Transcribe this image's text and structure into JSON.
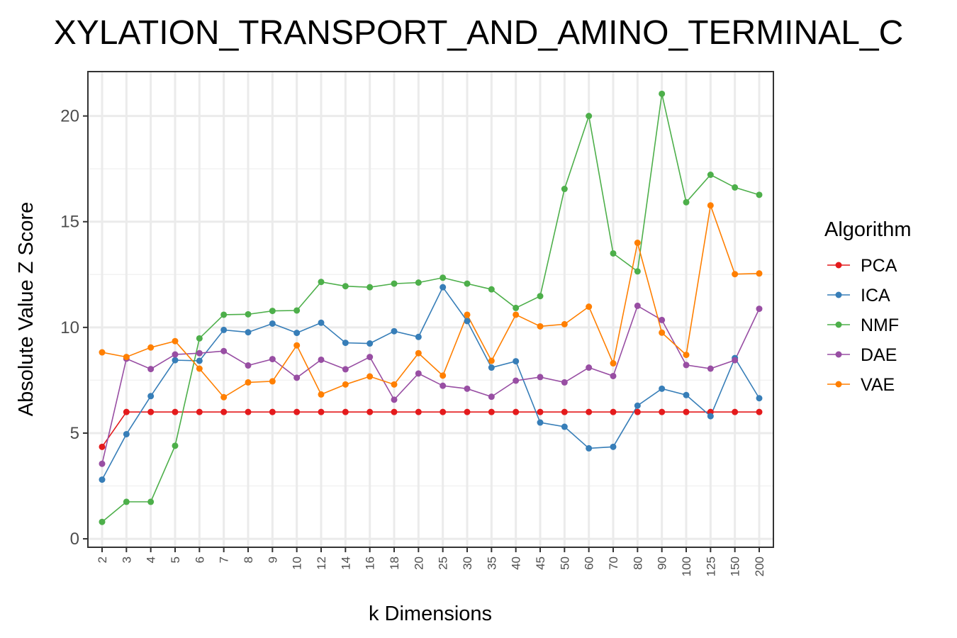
{
  "chart_data": {
    "type": "line",
    "title": "XYLATION_TRANSPORT_AND_AMINO_TERMINAL_C",
    "xlabel": "k Dimensions",
    "ylabel": "Absolute Value Z Score",
    "categories": [
      "2",
      "3",
      "4",
      "5",
      "6",
      "7",
      "8",
      "9",
      "10",
      "12",
      "14",
      "16",
      "18",
      "20",
      "25",
      "30",
      "35",
      "40",
      "45",
      "50",
      "60",
      "70",
      "80",
      "90",
      "100",
      "125",
      "150",
      "200"
    ],
    "ylim": [
      -0.4,
      22.1
    ],
    "yticks": [
      0,
      5,
      10,
      15,
      20
    ],
    "grid": true,
    "legend": {
      "title": "Algorithm",
      "position": "right"
    },
    "series": [
      {
        "name": "PCA",
        "color": "#e41a1c",
        "values": [
          4.35,
          6.0,
          6.0,
          6.0,
          6.0,
          6.0,
          6.0,
          6.0,
          6.0,
          6.0,
          6.0,
          6.0,
          6.0,
          6.0,
          6.0,
          6.0,
          6.0,
          6.0,
          6.0,
          6.0,
          6.0,
          6.0,
          6.0,
          6.0,
          6.0,
          6.0,
          6.0,
          6.0
        ]
      },
      {
        "name": "ICA",
        "color": "#377eb8",
        "values": [
          2.8,
          4.95,
          6.75,
          8.45,
          8.42,
          9.88,
          9.77,
          10.18,
          9.74,
          10.22,
          9.27,
          9.24,
          9.82,
          9.55,
          11.9,
          10.3,
          8.1,
          8.4,
          5.5,
          5.3,
          4.28,
          4.35,
          6.3,
          7.1,
          6.8,
          5.8,
          8.55,
          6.65
        ]
      },
      {
        "name": "NMF",
        "color": "#4daf4a",
        "values": [
          0.8,
          1.75,
          1.75,
          4.4,
          9.48,
          10.6,
          10.62,
          10.78,
          10.8,
          12.15,
          11.95,
          11.9,
          12.07,
          12.12,
          12.35,
          12.07,
          11.8,
          10.92,
          11.48,
          16.55,
          20.0,
          13.5,
          12.65,
          21.05,
          15.92,
          17.22,
          16.62,
          16.27
        ]
      },
      {
        "name": "DAE",
        "color": "#984ea3",
        "values": [
          3.55,
          8.52,
          8.03,
          8.72,
          8.78,
          8.88,
          8.2,
          8.5,
          7.62,
          8.47,
          8.02,
          8.6,
          6.58,
          7.82,
          7.24,
          7.1,
          6.72,
          7.48,
          7.65,
          7.4,
          8.1,
          7.7,
          11.02,
          10.35,
          8.22,
          8.05,
          8.45,
          10.88
        ]
      },
      {
        "name": "VAE",
        "color": "#ff7f00",
        "values": [
          8.82,
          8.6,
          9.05,
          9.35,
          8.05,
          6.7,
          7.4,
          7.45,
          9.15,
          6.83,
          7.3,
          7.68,
          7.3,
          8.78,
          7.72,
          10.6,
          8.42,
          10.6,
          10.05,
          10.15,
          10.98,
          8.3,
          14.0,
          9.75,
          8.7,
          15.77,
          12.52,
          12.55
        ]
      }
    ]
  }
}
